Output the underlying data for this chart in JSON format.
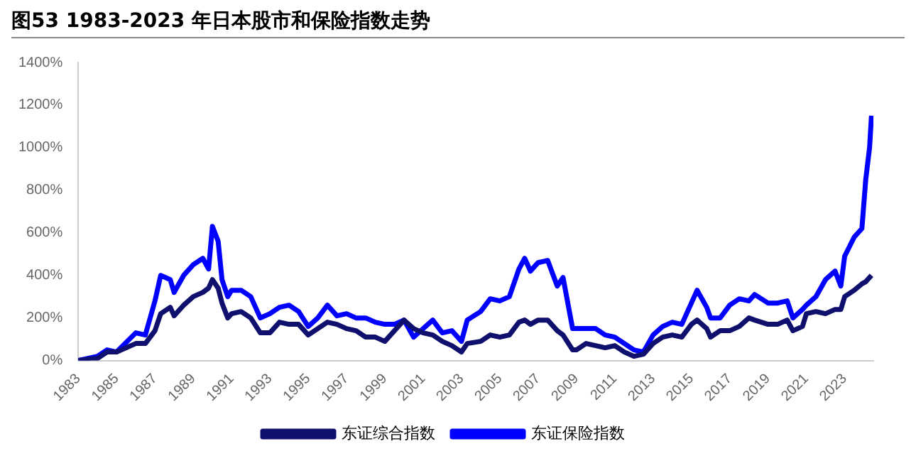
{
  "chart_data": {
    "type": "line",
    "title": "图53 1983-2023 年日本股市和保险指数走势",
    "x": [
      1983,
      1984,
      1984.5,
      1985,
      1986,
      1986.5,
      1987,
      1987.3,
      1987.8,
      1988,
      1988.5,
      1989,
      1989.5,
      1989.8,
      1990,
      1990.3,
      1990.5,
      1990.8,
      1991,
      1991.5,
      1992,
      1992.5,
      1993,
      1993.5,
      1994,
      1994.5,
      1995,
      1995.5,
      1996,
      1996.5,
      1997,
      1997.5,
      1998,
      1998.5,
      1999,
      1999.5,
      2000,
      2000.5,
      2001,
      2001.5,
      2002,
      2002.5,
      2003,
      2003.3,
      2004,
      2004.5,
      2005,
      2005.5,
      2006,
      2006.3,
      2006.6,
      2007,
      2007.5,
      2008,
      2008.3,
      2008.8,
      2009,
      2009.5,
      2010,
      2010.5,
      2011,
      2011.5,
      2012,
      2012.5,
      2013,
      2013.5,
      2014,
      2014.5,
      2015,
      2015.3,
      2015.8,
      2016,
      2016.5,
      2017,
      2017.5,
      2018,
      2018.3,
      2019,
      2019.5,
      2020,
      2020.3,
      2020.8,
      2021,
      2021.5,
      2022,
      2022.5,
      2022.8,
      2023,
      2023.5,
      2023.9,
      2024.1,
      2024.3,
      2024.4
    ],
    "series": [
      {
        "name": "东证综合指数",
        "color": "#0f0f6e",
        "values": [
          0,
          10,
          40,
          40,
          80,
          80,
          140,
          220,
          250,
          210,
          260,
          300,
          320,
          340,
          380,
          340,
          270,
          200,
          220,
          230,
          200,
          130,
          130,
          180,
          170,
          170,
          120,
          150,
          180,
          170,
          150,
          140,
          110,
          110,
          90,
          140,
          190,
          150,
          130,
          120,
          90,
          70,
          40,
          80,
          90,
          120,
          110,
          120,
          180,
          190,
          170,
          190,
          190,
          140,
          120,
          50,
          50,
          80,
          70,
          60,
          70,
          40,
          20,
          30,
          80,
          110,
          120,
          110,
          170,
          190,
          150,
          110,
          140,
          140,
          160,
          200,
          190,
          170,
          170,
          190,
          140,
          160,
          220,
          230,
          220,
          240,
          240,
          300,
          330,
          360,
          370,
          390,
          400
        ]
      },
      {
        "name": "东证保险指数",
        "color": "#0000ff",
        "values": [
          0,
          20,
          50,
          40,
          130,
          120,
          280,
          400,
          380,
          320,
          400,
          450,
          480,
          430,
          630,
          560,
          380,
          300,
          330,
          330,
          300,
          200,
          220,
          250,
          260,
          230,
          160,
          200,
          260,
          210,
          220,
          200,
          200,
          180,
          170,
          170,
          190,
          110,
          150,
          190,
          130,
          140,
          90,
          190,
          230,
          290,
          280,
          300,
          430,
          480,
          420,
          460,
          470,
          350,
          390,
          150,
          150,
          150,
          150,
          120,
          110,
          80,
          50,
          40,
          120,
          160,
          180,
          170,
          270,
          330,
          250,
          200,
          200,
          260,
          290,
          280,
          310,
          270,
          270,
          280,
          200,
          240,
          260,
          300,
          380,
          420,
          350,
          490,
          580,
          620,
          850,
          1000,
          1150
        ]
      }
    ],
    "xlim": [
      1983,
      2024.5
    ],
    "xticks": [
      1983,
      1985,
      1987,
      1989,
      1991,
      1993,
      1995,
      1997,
      1999,
      2001,
      2003,
      2005,
      2007,
      2009,
      2011,
      2013,
      2015,
      2017,
      2019,
      2021,
      2023
    ],
    "ylim": [
      0,
      1400
    ],
    "yticks": [
      {
        "value": 0,
        "label": "0%"
      },
      {
        "value": 200,
        "label": "200%"
      },
      {
        "value": 400,
        "label": "400%"
      },
      {
        "value": 600,
        "label": "600%"
      },
      {
        "value": 800,
        "label": "800%"
      },
      {
        "value": 1000,
        "label": "1000%"
      },
      {
        "value": 1200,
        "label": "1200%"
      },
      {
        "value": 1400,
        "label": "1400%"
      }
    ],
    "grid": false,
    "legend": "bottom",
    "marker": "none",
    "line_style": "solid"
  }
}
